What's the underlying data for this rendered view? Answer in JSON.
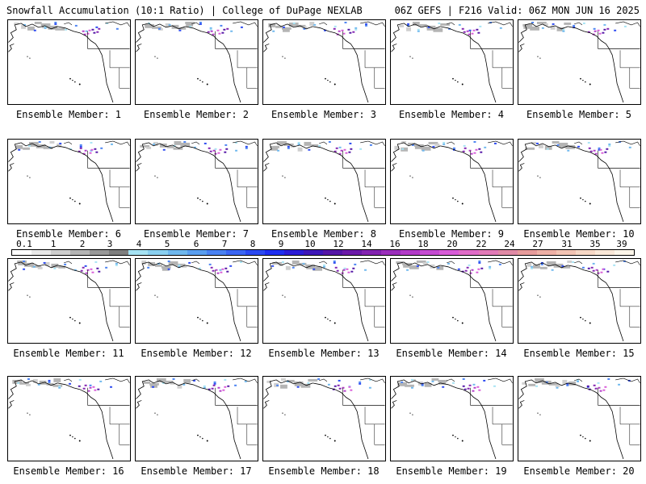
{
  "header": {
    "left": "Snowfall Accumulation (10:1 Ratio) | College of DuPage NEXLAB",
    "right": "06Z GEFS | F216 Valid: 06Z MON JUN 16 2025"
  },
  "members": [
    {
      "caption": "Ensemble Member: 1"
    },
    {
      "caption": "Ensemble Member: 2"
    },
    {
      "caption": "Ensemble Member: 3"
    },
    {
      "caption": "Ensemble Member: 4"
    },
    {
      "caption": "Ensemble Member: 5"
    },
    {
      "caption": "Ensemble Member: 6"
    },
    {
      "caption": "Ensemble Member: 7"
    },
    {
      "caption": "Ensemble Member: 8"
    },
    {
      "caption": "Ensemble Member: 9"
    },
    {
      "caption": "Ensemble Member: 10"
    },
    {
      "caption": "Ensemble Member: 11"
    },
    {
      "caption": "Ensemble Member: 12"
    },
    {
      "caption": "Ensemble Member: 13"
    },
    {
      "caption": "Ensemble Member: 14"
    },
    {
      "caption": "Ensemble Member: 15"
    },
    {
      "caption": "Ensemble Member: 16"
    },
    {
      "caption": "Ensemble Member: 17"
    },
    {
      "caption": "Ensemble Member: 18"
    },
    {
      "caption": "Ensemble Member: 19"
    },
    {
      "caption": "Ensemble Member: 20"
    }
  ],
  "colorbar": {
    "labels": [
      "0.1",
      "1",
      "2",
      "3",
      "4",
      "5",
      "6",
      "7",
      "8",
      "9",
      "10",
      "12",
      "14",
      "16",
      "18",
      "20",
      "22",
      "24",
      "27",
      "31",
      "35",
      "39"
    ],
    "colors": [
      "#ffffff",
      "#e8e8e8",
      "#cfcfcf",
      "#b4b4b4",
      "#999999",
      "#7f7f7f",
      "#a6e3f4",
      "#8ad0f0",
      "#6fb8ee",
      "#5a9ff0",
      "#4a82f2",
      "#3b66f3",
      "#2b49f1",
      "#1e2ef0",
      "#2b1cd6",
      "#3d17b8",
      "#5416a6",
      "#6b1aa8",
      "#8223b0",
      "#9b2fbc",
      "#b23ac8",
      "#c54bd2",
      "#d85cd8",
      "#e06cc8",
      "#e27bb8",
      "#e08aa6",
      "#e69b9b",
      "#eeb0a6",
      "#f3c4b4",
      "#f7d8c6",
      "#fae8d8",
      "#fdf6ea"
    ]
  }
}
